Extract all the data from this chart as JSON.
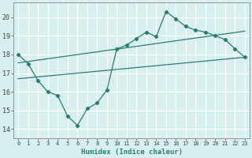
{
  "main_x": [
    0,
    1,
    2,
    3,
    4,
    5,
    6,
    7,
    8,
    9,
    10,
    11,
    12,
    13,
    14,
    15,
    16,
    17,
    18,
    19,
    20,
    21,
    22,
    23
  ],
  "main_y": [
    18.0,
    17.5,
    16.6,
    16.0,
    15.8,
    14.7,
    14.2,
    15.1,
    15.4,
    16.1,
    18.3,
    18.5,
    18.85,
    19.2,
    18.95,
    20.3,
    19.9,
    19.5,
    19.3,
    19.2,
    19.0,
    18.8,
    18.3,
    17.85
  ],
  "trend1_x": [
    0,
    23
  ],
  "trend1_y": [
    17.55,
    19.25
  ],
  "trend2_x": [
    0,
    23
  ],
  "trend2_y": [
    16.7,
    17.85
  ],
  "line_color": "#2d7d6e",
  "bg_color": "#d8eff0",
  "grid_color": "#ffffff",
  "xlabel": "Humidex (Indice chaleur)",
  "ylabel_ticks": [
    14,
    15,
    16,
    17,
    18,
    19,
    20
  ],
  "xtick_labels": [
    "0",
    "1",
    "2",
    "3",
    "4",
    "5",
    "6",
    "7",
    "8",
    "9",
    "10",
    "11",
    "12",
    "13",
    "14",
    "15",
    "16",
    "17",
    "18",
    "19",
    "20",
    "21",
    "22",
    "23"
  ],
  "xlim": [
    -0.5,
    23.5
  ],
  "ylim": [
    13.5,
    20.8
  ]
}
